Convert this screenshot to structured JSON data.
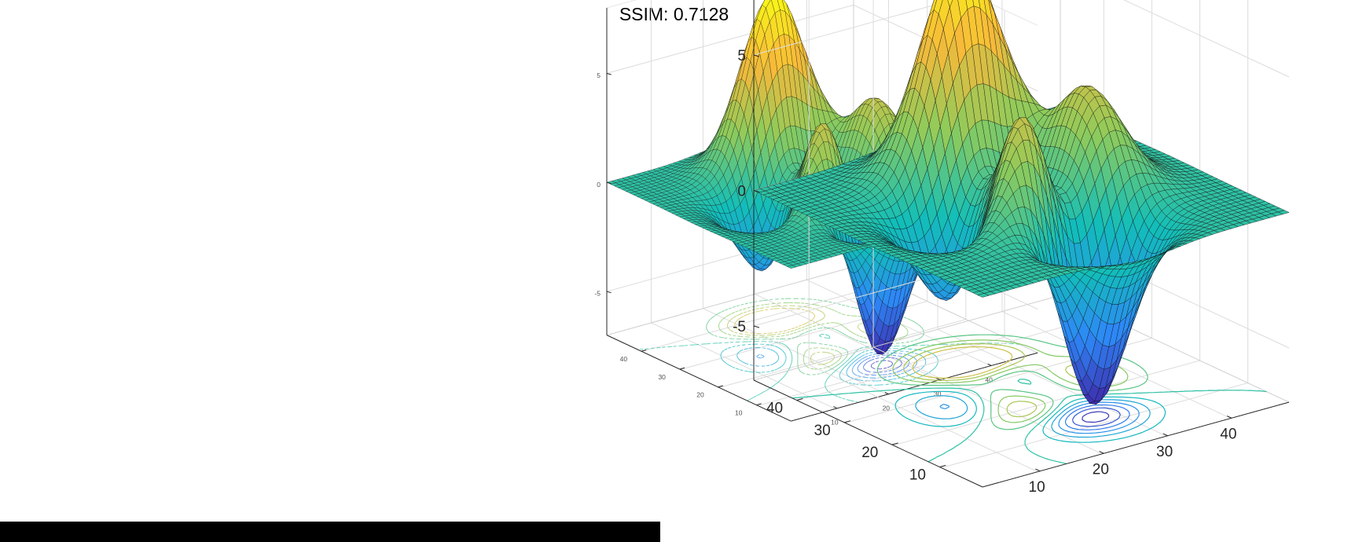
{
  "figure": {
    "title": "SSIM: 0.7128"
  },
  "chart_data": [
    {
      "type": "surface",
      "description": "peaks-style 3-D surface with faint contour projection on floor",
      "mesh": [
        49,
        49
      ],
      "z_range": [
        -6.5,
        8.1
      ],
      "zlim": [
        -7,
        8
      ],
      "zticks": [
        "-5",
        "0",
        "5"
      ],
      "xticks": [
        "10",
        "20",
        "30",
        "40"
      ],
      "yticks": [
        "10",
        "20",
        "30",
        "40"
      ],
      "colormap": [
        "#3e26a8",
        "#2e87f7",
        "#12beb9",
        "#8fcb5b",
        "#f7b93a",
        "#f9fb15"
      ],
      "grid": true
    },
    {
      "type": "surface",
      "description": "peaks-style 3-D surface with contour plot on floor",
      "mesh": [
        49,
        49
      ],
      "z_range": [
        -6.5,
        8.1
      ],
      "zlim": [
        -7,
        8
      ],
      "zticks": [
        "-5",
        "0",
        "5"
      ],
      "xticks": [
        "10",
        "20",
        "30",
        "40"
      ],
      "yticks": [
        "10",
        "20",
        "30",
        "40"
      ],
      "colormap": [
        "#3e26a8",
        "#2e87f7",
        "#12beb9",
        "#8fcb5b",
        "#f7b93a",
        "#f9fb15"
      ],
      "grid": true
    }
  ]
}
